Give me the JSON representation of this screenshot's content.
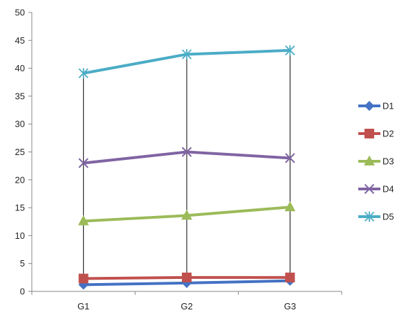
{
  "chart_data": {
    "type": "line",
    "title": "",
    "xlabel": "",
    "ylabel": "",
    "categories": [
      "G1",
      "G2",
      "G3"
    ],
    "ylim": [
      0,
      50
    ],
    "yticks": [
      0,
      5,
      10,
      15,
      20,
      25,
      30,
      35,
      40,
      45,
      50
    ],
    "high_low_lines": true,
    "grid": false,
    "legend_position": "right",
    "series": [
      {
        "name": "D1",
        "values": [
          1.2,
          1.5,
          1.9
        ],
        "color": "#4472C4",
        "marker": "diamond"
      },
      {
        "name": "D2",
        "values": [
          2.3,
          2.5,
          2.5
        ],
        "color": "#C0504D",
        "marker": "square"
      },
      {
        "name": "D3",
        "values": [
          12.6,
          13.6,
          15.1
        ],
        "color": "#9BBB59",
        "marker": "triangle"
      },
      {
        "name": "D4",
        "values": [
          23.0,
          25.0,
          23.9
        ],
        "color": "#8064A2",
        "marker": "x"
      },
      {
        "name": "D5",
        "values": [
          39.1,
          42.5,
          43.2
        ],
        "color": "#4BACC6",
        "marker": "star"
      }
    ]
  }
}
